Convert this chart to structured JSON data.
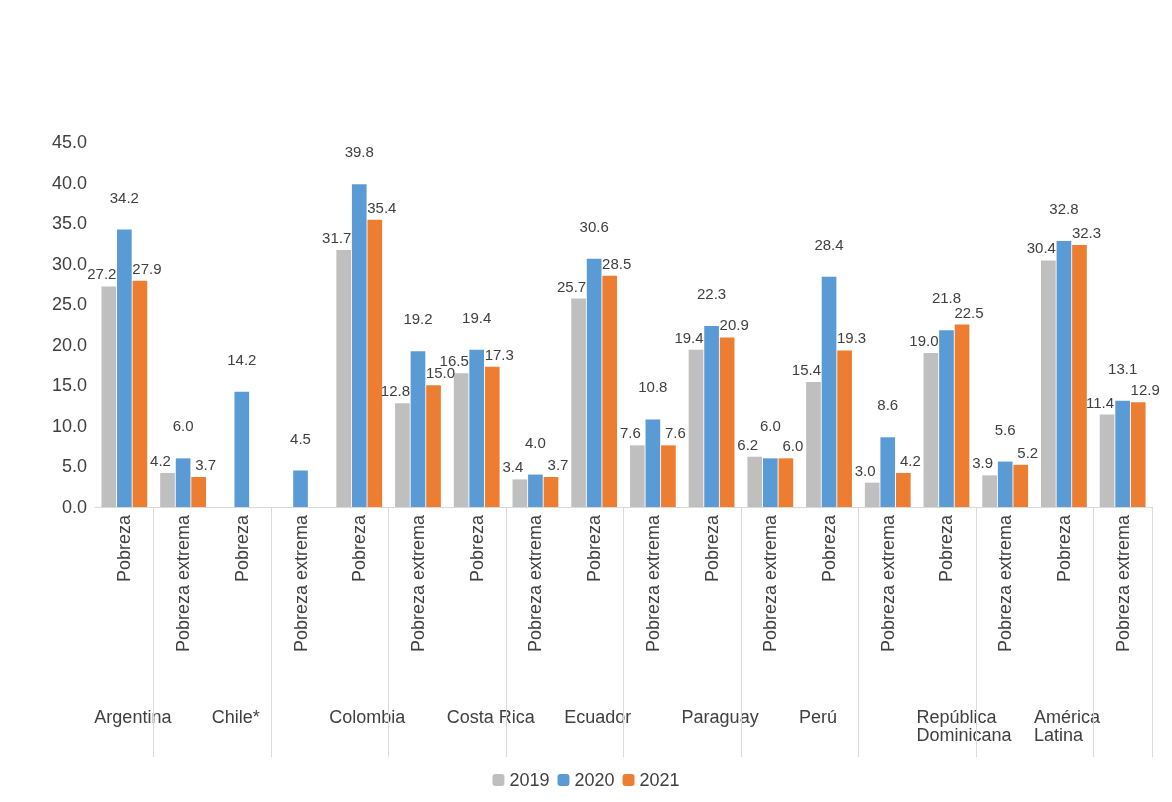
{
  "chart_data": {
    "type": "bar",
    "categories": [
      "Pobreza",
      "Pobreza extrema",
      "Pobreza",
      "Pobreza extrema",
      "Pobreza",
      "Pobreza extrema",
      "Pobreza",
      "Pobreza extrema",
      "Pobreza",
      "Pobreza extrema",
      "Pobreza",
      "Pobreza extrema",
      "Pobreza",
      "Pobreza extrema",
      "Pobreza",
      "Pobreza extrema",
      "Pobreza",
      "Pobreza extrema"
    ],
    "annotations": [
      "Argentina",
      "Chile*",
      "Colombia",
      "Costa Rica",
      "Ecuador",
      "Paraguay",
      "Perú",
      "República Dominicana",
      "América Latina"
    ],
    "series": [
      {
        "name": "2019",
        "color": "#bfbfbf",
        "values": [
          27.2,
          4.2,
          null,
          null,
          31.7,
          12.8,
          16.5,
          3.4,
          25.7,
          7.6,
          19.4,
          6.2,
          15.4,
          3.0,
          19.0,
          3.9,
          30.4,
          11.4
        ],
        "value_labels": [
          "27.2",
          "4.2",
          null,
          null,
          "31.7",
          "12.8",
          "16.5",
          "3.4",
          "25.7",
          "7.6",
          "19.4",
          "6.2",
          "15.4",
          "3.0",
          "19.0",
          "3.9",
          "30.4",
          "11.4"
        ]
      },
      {
        "name": "2020",
        "color": "#5b9bd5",
        "values": [
          34.2,
          6.0,
          14.2,
          4.5,
          39.8,
          19.2,
          19.4,
          4.0,
          30.6,
          10.8,
          22.3,
          6.0,
          28.4,
          8.6,
          21.8,
          5.6,
          32.8,
          13.1
        ],
        "value_labels": [
          "34.2",
          "6.0",
          "14.2",
          "4.5",
          "39.8",
          "19.2",
          "19.4",
          "4.0",
          "30.6",
          "10.8",
          "22.3",
          "6.0",
          "28.4",
          "8.6",
          "21.8",
          "5.6",
          "32.8",
          "13.1"
        ]
      },
      {
        "name": "2021",
        "color": "#ed7d31",
        "values": [
          27.9,
          3.7,
          null,
          null,
          35.4,
          15.0,
          17.3,
          3.7,
          28.5,
          7.6,
          20.9,
          6.0,
          19.3,
          4.2,
          22.5,
          5.2,
          32.3,
          12.9
        ],
        "value_labels": [
          "27.9",
          "3.7",
          null,
          null,
          "35.4",
          "15.0",
          "17.3",
          "3.7",
          "28.5",
          "7.6",
          "20.9",
          "6.0",
          "19.3",
          "4.2",
          "22.5",
          "5.2",
          "32.3",
          "12.9"
        ]
      }
    ],
    "ylim": [
      0,
      45
    ],
    "yticks": [
      {
        "value": 0,
        "label": "0.0"
      },
      {
        "value": 5,
        "label": "5.0"
      },
      {
        "value": 10,
        "label": "10.0"
      },
      {
        "value": 15,
        "label": "15.0"
      },
      {
        "value": 20,
        "label": "20.0"
      },
      {
        "value": 25,
        "label": "25.0"
      },
      {
        "value": 30,
        "label": "30.0"
      },
      {
        "value": 35,
        "label": "35.0"
      },
      {
        "value": 40,
        "label": "40.0"
      },
      {
        "value": 45,
        "label": "45.0"
      }
    ],
    "grid": false,
    "legend": "bottom"
  }
}
